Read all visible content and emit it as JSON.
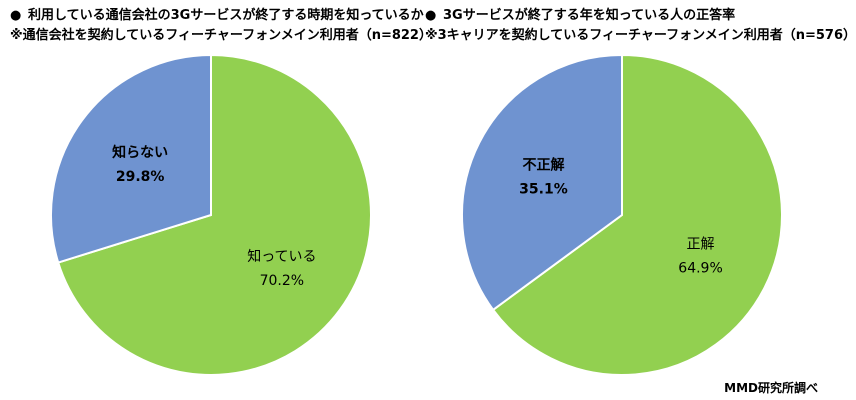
{
  "charts_header": {
    "left": {
      "bullet": "●",
      "title": "利用している通信会社の3Gサービスが終了する時期を知っているか",
      "subtitle": "※通信会社を契約しているフィーチャーフォンメイン利用者（n=822）"
    },
    "right": {
      "bullet": "●",
      "title": "3Gサービスが終了する年を知っている人の正答率",
      "subtitle": "※3キャリアを契約しているフィーチャーフォンメイン利用者（n=576）"
    }
  },
  "source": "MMD研究所調べ",
  "colors": {
    "green": "#92d050",
    "blue": "#6f93d0",
    "stroke": "#ffffff"
  },
  "chart_data": [
    {
      "type": "pie",
      "title": "利用している通信会社の3Gサービスが終了する時期を知っているか",
      "subtitle": "※通信会社を契約しているフィーチャーフォンメイン利用者（n=822）",
      "start_angle": "12 o'clock, clockwise",
      "slices": [
        {
          "label": "知っている",
          "value": 70.2,
          "value_label": "70.2%",
          "color": "#92d050",
          "bold": false
        },
        {
          "label": "知らない",
          "value": 29.8,
          "value_label": "29.8%",
          "color": "#6f93d0",
          "bold": true
        }
      ]
    },
    {
      "type": "pie",
      "title": "3Gサービスが終了する年を知っている人の正答率",
      "subtitle": "※3キャリアを契約しているフィーチャーフォンメイン利用者（n=576）",
      "start_angle": "12 o'clock, clockwise",
      "slices": [
        {
          "label": "正解",
          "value": 64.9,
          "value_label": "64.9%",
          "color": "#92d050",
          "bold": false
        },
        {
          "label": "不正解",
          "value": 35.1,
          "value_label": "35.1%",
          "color": "#6f93d0",
          "bold": true
        }
      ]
    }
  ]
}
